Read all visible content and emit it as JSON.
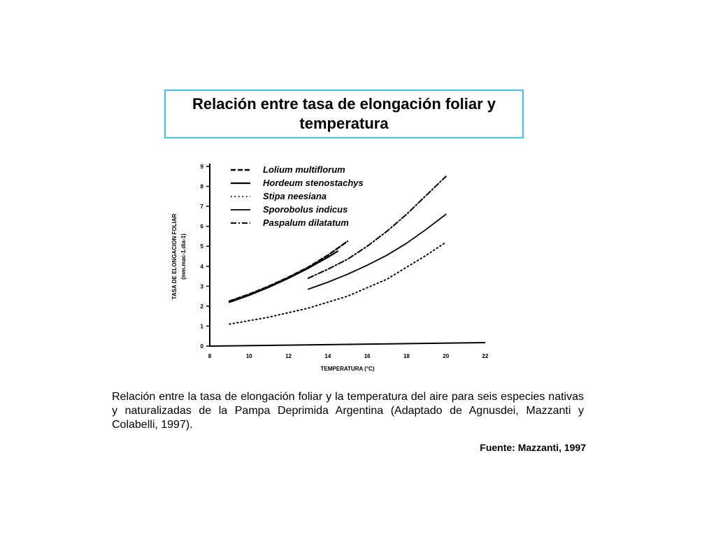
{
  "title": "Relación entre tasa de elongación foliar y temperatura",
  "caption": "Relación entre la tasa de elongación foliar y la temperatura del aire para seis especies nativas y naturalizadas de la Pampa Deprimida Argentina (Adaptado de Agnusdei, Mazzanti y Colabelli, 1997).",
  "source": "Fuente: Mazzanti, 1997",
  "chart_data": {
    "type": "line",
    "xlabel": "TEMPERATURA (°C)",
    "ylabel": "TASA DE ELONGACION FOLIAR",
    "ylabel_units": "(mm.mac-1.dia-1)",
    "xlim": [
      8,
      22
    ],
    "ylim": [
      0,
      9
    ],
    "xticks": [
      8,
      10,
      12,
      14,
      16,
      18,
      20,
      22
    ],
    "yticks": [
      0,
      1,
      2,
      3,
      4,
      5,
      6,
      7,
      8,
      9
    ],
    "grid": false,
    "legend_position": "top-left",
    "series": [
      {
        "name": "Lolium multiflorum",
        "style": "dashed",
        "x": [
          9,
          10,
          11,
          12,
          13,
          14,
          15
        ],
        "y": [
          2.25,
          2.6,
          3.0,
          3.45,
          3.95,
          4.55,
          5.25
        ]
      },
      {
        "name": "Hordeum stenostachys",
        "style": "solid",
        "x": [
          9,
          10,
          11,
          12,
          13,
          14,
          14.5
        ],
        "y": [
          2.2,
          2.55,
          2.95,
          3.4,
          3.9,
          4.45,
          4.75
        ]
      },
      {
        "name": "Stipa neesiana",
        "style": "dotted",
        "x": [
          9,
          11,
          13,
          15,
          17,
          19,
          20
        ],
        "y": [
          1.1,
          1.45,
          1.9,
          2.5,
          3.35,
          4.55,
          5.2
        ]
      },
      {
        "name": "Sporobolus indicus",
        "style": "solid-thin",
        "x": [
          13,
          14,
          15,
          16,
          17,
          18,
          19,
          20
        ],
        "y": [
          2.85,
          3.2,
          3.6,
          4.05,
          4.55,
          5.15,
          5.85,
          6.6
        ]
      },
      {
        "name": "Paspalum dilatatum",
        "style": "dash-dot",
        "x": [
          13,
          14,
          15,
          16,
          17,
          18,
          19,
          20
        ],
        "y": [
          3.4,
          3.85,
          4.35,
          5.0,
          5.75,
          6.6,
          7.55,
          8.5
        ]
      }
    ]
  }
}
